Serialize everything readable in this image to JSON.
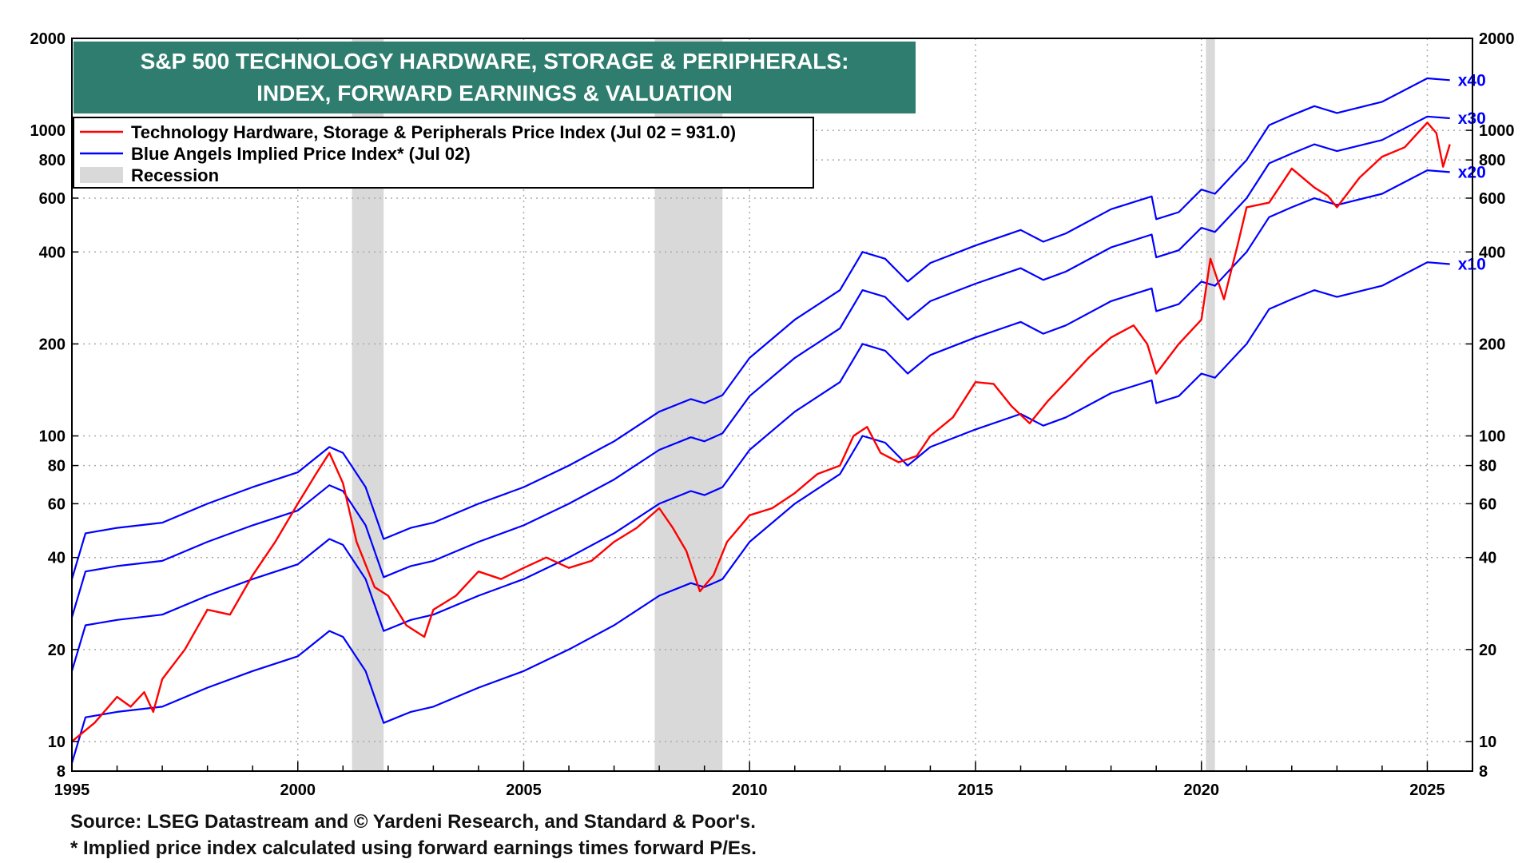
{
  "chart_data": {
    "type": "line",
    "title_line1": "S&P 500 TECHNOLOGY HARDWARE, STORAGE & PERIPHERALS:",
    "title_line2": "INDEX, FORWARD EARNINGS & VALUATION",
    "colors": {
      "title_bg": "#2e7d6e",
      "price": "#ff0000",
      "implied": "#0000ff",
      "recession": "#d9d9d9"
    },
    "y_scale": "log",
    "ylim": [
      8,
      2000
    ],
    "xlim": [
      1995,
      2026.0
    ],
    "x_ticks": [
      "1995",
      "2000",
      "2005",
      "2010",
      "2015",
      "2020",
      "2025"
    ],
    "y_ticks": [
      {
        "value": 8,
        "label": "8"
      },
      {
        "value": 10,
        "label": "10"
      },
      {
        "value": 20,
        "label": "20"
      },
      {
        "value": 40,
        "label": "40"
      },
      {
        "value": 60,
        "label": "60"
      },
      {
        "value": 80,
        "label": "80"
      },
      {
        "value": 100,
        "label": "100"
      },
      {
        "value": 200,
        "label": "200"
      },
      {
        "value": 400,
        "label": "400"
      },
      {
        "value": 600,
        "label": "600"
      },
      {
        "value": 800,
        "label": "800"
      },
      {
        "value": 1000,
        "label": "1000"
      },
      {
        "value": 2000,
        "label": "2000"
      }
    ],
    "legend": [
      {
        "key": "price",
        "label": "Technology Hardware, Storage & Peripherals Price Index (Jul 02 = 931.0)"
      },
      {
        "key": "implied",
        "label": "Blue Angels Implied Price Index* (Jul 02)"
      },
      {
        "key": "recession",
        "label": "Recession"
      }
    ],
    "recessions": [
      [
        2001.2,
        2001.9
      ],
      [
        2007.9,
        2009.4
      ],
      [
        2020.1,
        2020.3
      ]
    ],
    "price_series": {
      "name": "Technology Hardware, Storage & Peripherals Price Index",
      "x": [
        1995.0,
        1995.5,
        1996.0,
        1996.3,
        1996.6,
        1996.8,
        1997.0,
        1997.5,
        1998.0,
        1998.5,
        1999.0,
        1999.5,
        2000.0,
        2000.4,
        2000.7,
        2001.0,
        2001.3,
        2001.7,
        2002.0,
        2002.4,
        2002.8,
        2003.0,
        2003.5,
        2004.0,
        2004.5,
        2005.0,
        2005.5,
        2006.0,
        2006.5,
        2007.0,
        2007.5,
        2008.0,
        2008.3,
        2008.6,
        2008.9,
        2009.2,
        2009.5,
        2010.0,
        2010.5,
        2011.0,
        2011.5,
        2012.0,
        2012.3,
        2012.6,
        2012.9,
        2013.3,
        2013.7,
        2014.0,
        2014.5,
        2015.0,
        2015.4,
        2015.8,
        2016.2,
        2016.6,
        2017.0,
        2017.5,
        2018.0,
        2018.5,
        2018.8,
        2019.0,
        2019.5,
        2020.0,
        2020.2,
        2020.5,
        2020.8,
        2021.0,
        2021.5,
        2022.0,
        2022.5,
        2022.8,
        2023.0,
        2023.5,
        2024.0,
        2024.5,
        2025.0,
        2025.2,
        2025.35,
        2025.5
      ],
      "values": [
        10,
        11.5,
        14,
        13,
        14.5,
        12.5,
        16,
        20,
        27,
        26,
        35,
        45,
        60,
        75,
        88,
        70,
        45,
        32,
        30,
        24,
        22,
        27,
        30,
        36,
        34,
        37,
        40,
        37,
        39,
        45,
        50,
        58,
        50,
        42,
        31,
        35,
        45,
        55,
        58,
        65,
        75,
        80,
        100,
        107,
        88,
        82,
        86,
        100,
        115,
        150,
        148,
        125,
        110,
        130,
        150,
        180,
        210,
        230,
        200,
        160,
        200,
        240,
        380,
        280,
        420,
        560,
        580,
        750,
        650,
        610,
        560,
        700,
        820,
        880,
        1060,
        980,
        760,
        900
      ]
    },
    "implied_series": [
      {
        "name": "x10",
        "label": "x10",
        "x": [
          1995.0,
          1995.3,
          1996.0,
          1997.0,
          1998.0,
          1999.0,
          2000.0,
          2000.7,
          2001.0,
          2001.5,
          2001.9,
          2002.5,
          2003.0,
          2004.0,
          2005.0,
          2006.0,
          2007.0,
          2008.0,
          2008.7,
          2009.0,
          2009.4,
          2010.0,
          2011.0,
          2012.0,
          2012.5,
          2013.0,
          2013.5,
          2014.0,
          2015.0,
          2016.0,
          2016.5,
          2017.0,
          2018.0,
          2018.9,
          2019.0,
          2019.5,
          2020.0,
          2020.3,
          2021.0,
          2021.5,
          2022.0,
          2022.5,
          2023.0,
          2024.0,
          2025.0,
          2025.5
        ],
        "values": [
          8.5,
          12,
          12.5,
          13,
          15,
          17,
          19,
          23,
          22,
          17,
          11.5,
          12.5,
          13,
          15,
          17,
          20,
          24,
          30,
          33,
          32,
          34,
          45,
          60,
          75,
          100,
          95,
          80,
          92,
          105,
          118,
          108,
          115,
          138,
          152,
          128,
          135,
          160,
          155,
          200,
          260,
          280,
          300,
          285,
          310,
          370,
          365
        ]
      },
      {
        "name": "x20",
        "label": "x20",
        "x": [
          1995.0,
          1995.3,
          1996.0,
          1997.0,
          1998.0,
          1999.0,
          2000.0,
          2000.7,
          2001.0,
          2001.5,
          2001.9,
          2002.5,
          2003.0,
          2004.0,
          2005.0,
          2006.0,
          2007.0,
          2008.0,
          2008.7,
          2009.0,
          2009.4,
          2010.0,
          2011.0,
          2012.0,
          2012.5,
          2013.0,
          2013.5,
          2014.0,
          2015.0,
          2016.0,
          2016.5,
          2017.0,
          2018.0,
          2018.9,
          2019.0,
          2019.5,
          2020.0,
          2020.3,
          2021.0,
          2021.5,
          2022.0,
          2022.5,
          2023.0,
          2024.0,
          2025.0,
          2025.5
        ],
        "values": [
          17,
          24,
          25,
          26,
          30,
          34,
          38,
          46,
          44,
          34,
          23,
          25,
          26,
          30,
          34,
          40,
          48,
          60,
          66,
          64,
          68,
          90,
          120,
          150,
          200,
          190,
          160,
          184,
          210,
          236,
          216,
          230,
          276,
          304,
          256,
          270,
          320,
          310,
          400,
          520,
          560,
          600,
          570,
          620,
          740,
          730
        ]
      },
      {
        "name": "x30",
        "label": "x30",
        "x": [
          1995.0,
          1995.3,
          1996.0,
          1997.0,
          1998.0,
          1999.0,
          2000.0,
          2000.7,
          2001.0,
          2001.5,
          2001.9,
          2002.5,
          2003.0,
          2004.0,
          2005.0,
          2006.0,
          2007.0,
          2008.0,
          2008.7,
          2009.0,
          2009.4,
          2010.0,
          2011.0,
          2012.0,
          2012.5,
          2013.0,
          2013.5,
          2014.0,
          2015.0,
          2016.0,
          2016.5,
          2017.0,
          2018.0,
          2018.9,
          2019.0,
          2019.5,
          2020.0,
          2020.3,
          2021.0,
          2021.5,
          2022.0,
          2022.5,
          2023.0,
          2024.0,
          2025.0,
          2025.5
        ],
        "values": [
          25.5,
          36,
          37.5,
          39,
          45,
          51,
          57,
          69,
          66,
          51,
          34.5,
          37.5,
          39,
          45,
          51,
          60,
          72,
          90,
          99,
          96,
          102,
          135,
          180,
          225,
          300,
          285,
          240,
          276,
          315,
          354,
          324,
          345,
          414,
          456,
          384,
          405,
          480,
          465,
          600,
          780,
          840,
          900,
          855,
          930,
          1110,
          1095
        ]
      },
      {
        "name": "x40",
        "label": "x40",
        "x": [
          1995.0,
          1995.3,
          1996.0,
          1997.0,
          1998.0,
          1999.0,
          2000.0,
          2000.7,
          2001.0,
          2001.5,
          2001.9,
          2002.5,
          2003.0,
          2004.0,
          2005.0,
          2006.0,
          2007.0,
          2008.0,
          2008.7,
          2009.0,
          2009.4,
          2010.0,
          2011.0,
          2012.0,
          2012.5,
          2013.0,
          2013.5,
          2014.0,
          2015.0,
          2016.0,
          2016.5,
          2017.0,
          2018.0,
          2018.9,
          2019.0,
          2019.5,
          2020.0,
          2020.3,
          2021.0,
          2021.5,
          2022.0,
          2022.5,
          2023.0,
          2024.0,
          2025.0,
          2025.5
        ],
        "values": [
          34,
          48,
          50,
          52,
          60,
          68,
          76,
          92,
          88,
          68,
          46,
          50,
          52,
          60,
          68,
          80,
          96,
          120,
          132,
          128,
          136,
          180,
          240,
          300,
          400,
          380,
          320,
          368,
          420,
          472,
          432,
          460,
          552,
          608,
          512,
          540,
          640,
          620,
          800,
          1040,
          1120,
          1200,
          1140,
          1240,
          1480,
          1460
        ]
      }
    ],
    "footnotes": [
      "Source: LSEG Datastream and © Yardeni Research, and Standard & Poor's.",
      "* Implied price index calculated using forward earnings times forward P/Es."
    ]
  }
}
